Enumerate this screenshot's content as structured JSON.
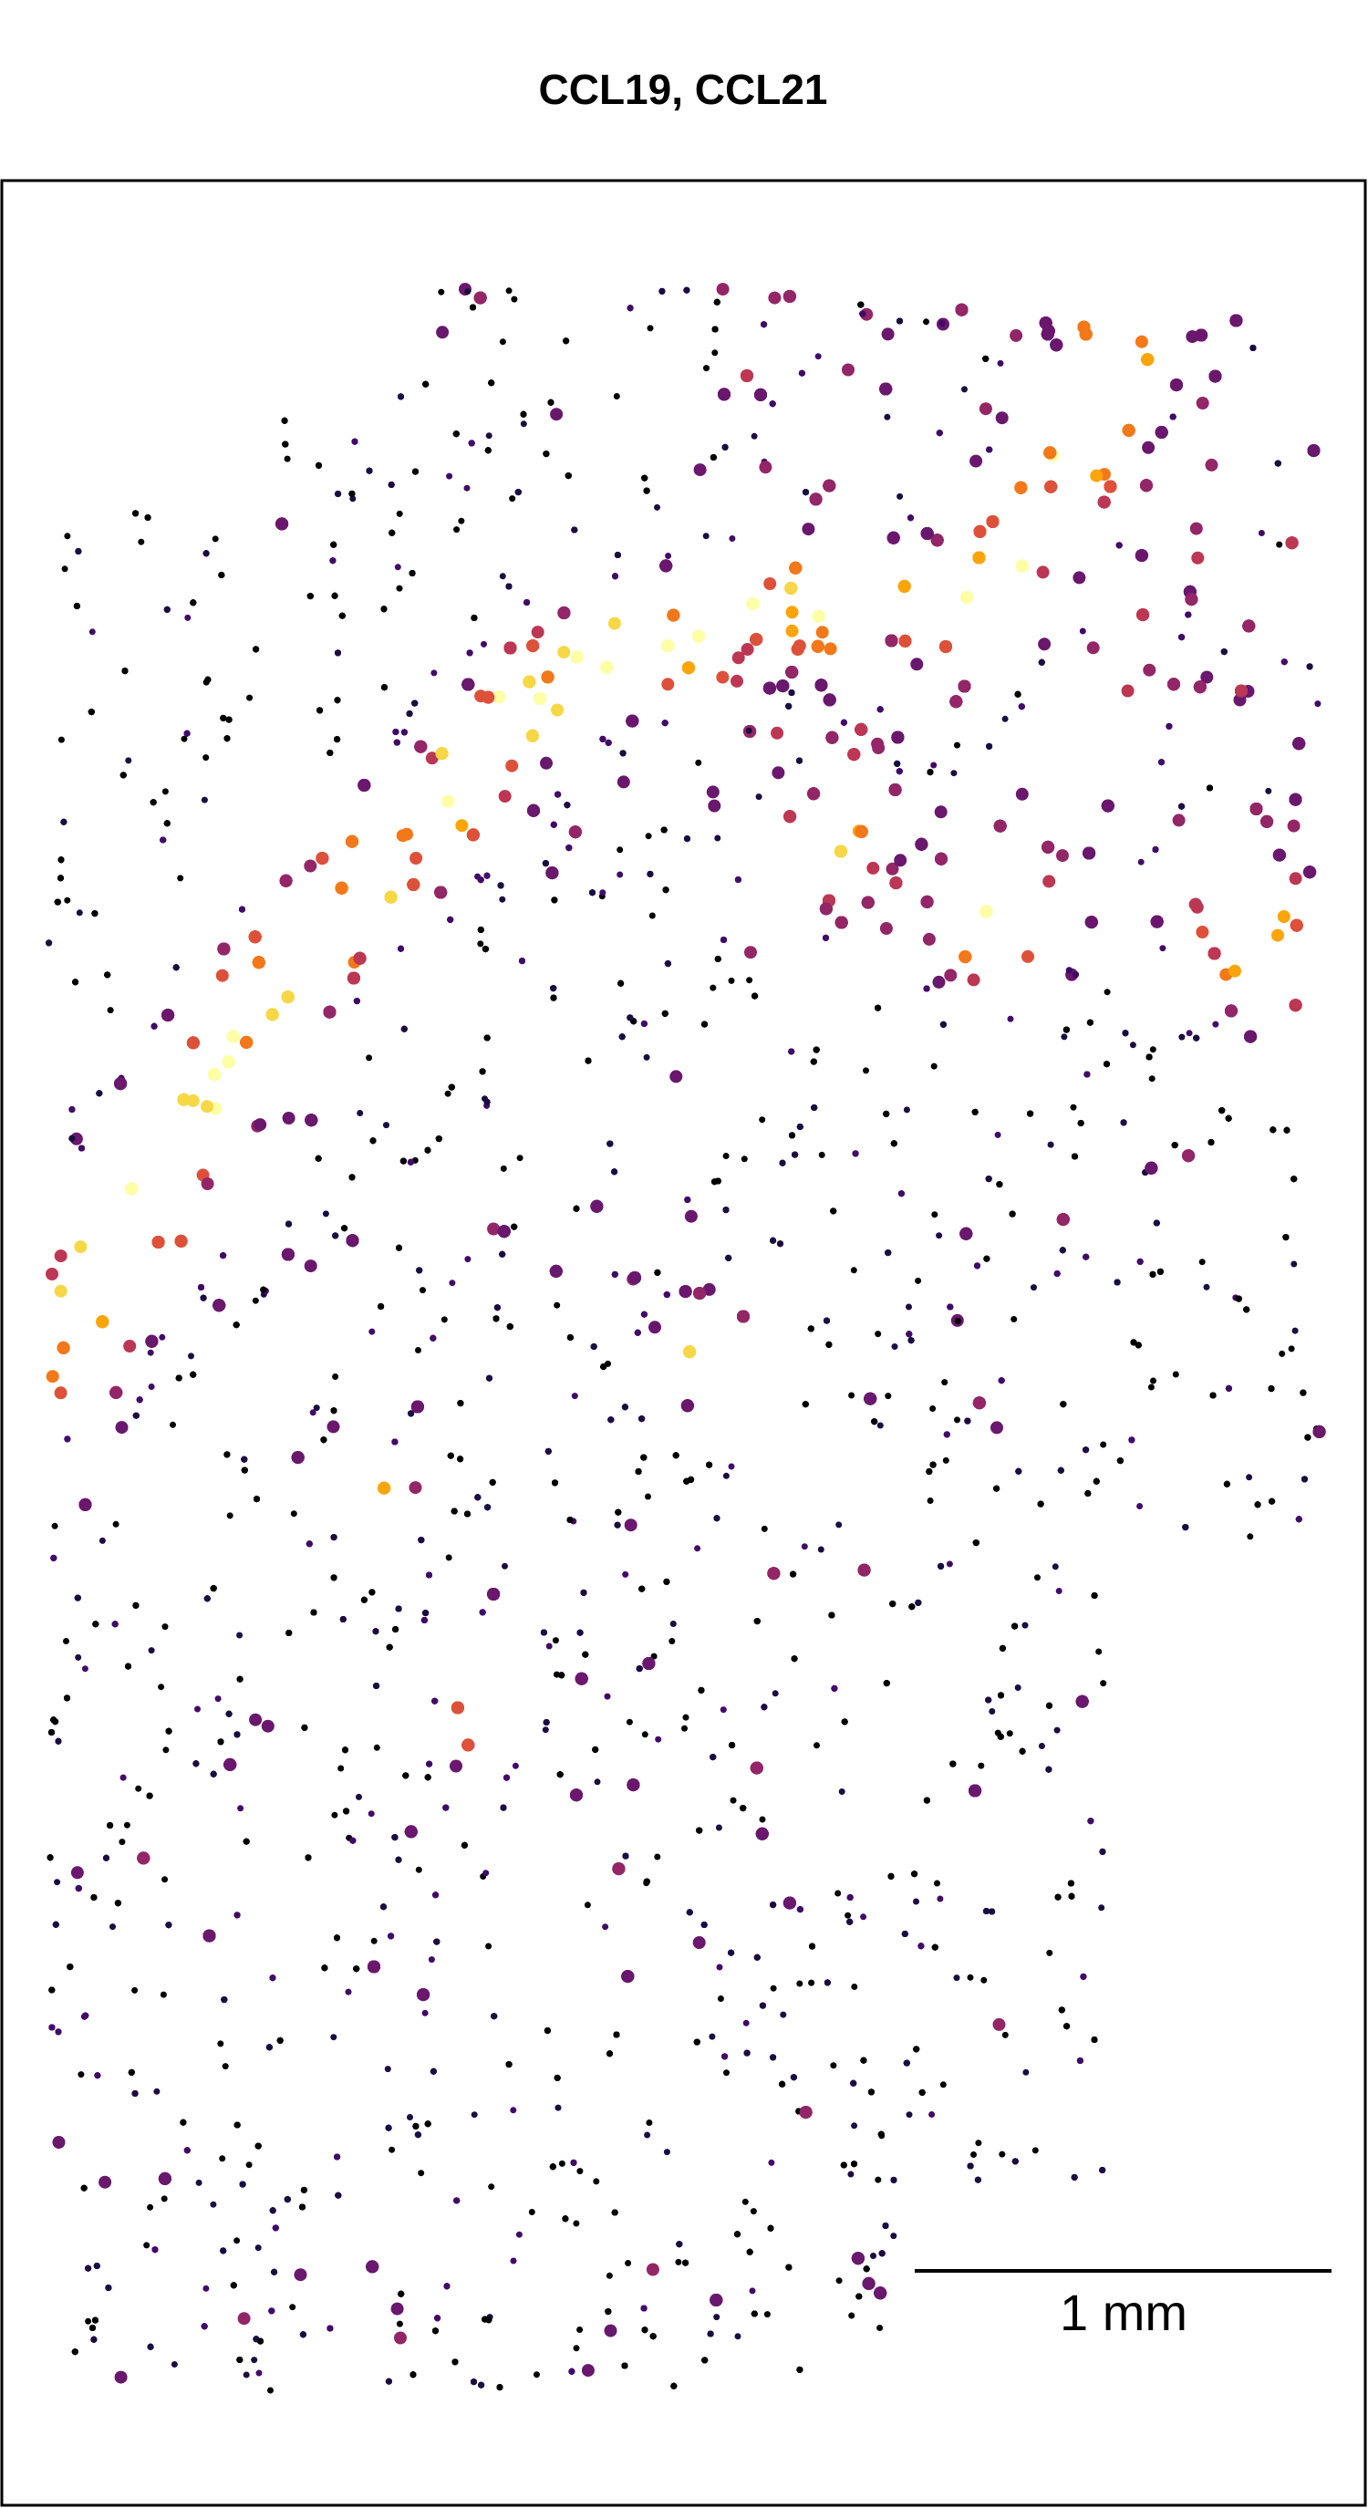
{
  "chart_data": {
    "type": "spatial",
    "title": "CCL19, CCL21",
    "scale_bar_label": "1 mm"
  }
}
